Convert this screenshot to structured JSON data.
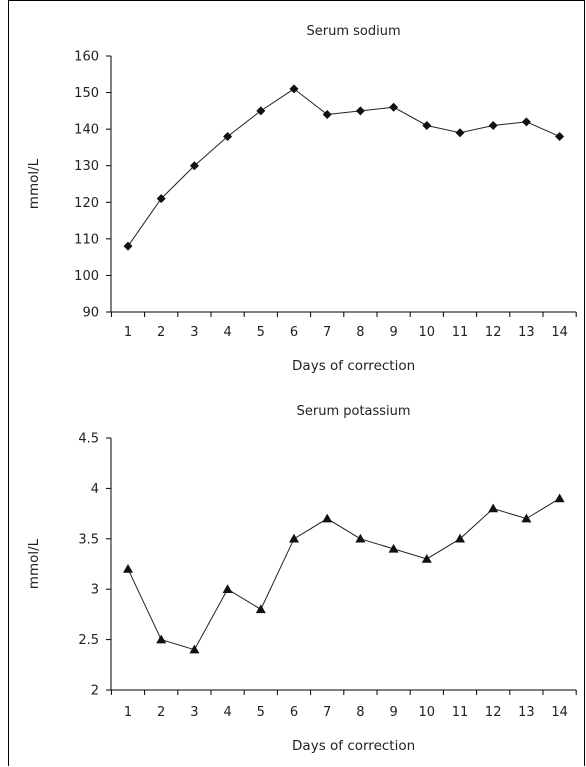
{
  "chart_data": [
    {
      "type": "line",
      "title": "Serum sodium",
      "xlabel": "Days of correction",
      "ylabel": "mmol/L",
      "x": [
        1,
        2,
        3,
        4,
        5,
        6,
        7,
        8,
        9,
        10,
        11,
        12,
        13,
        14
      ],
      "x_tick_labels": [
        "1",
        "2",
        "3",
        "4",
        "5",
        "6",
        "7",
        "8",
        "9",
        "10",
        "11",
        "12",
        "13",
        "14"
      ],
      "series": [
        {
          "values": [
            108,
            121,
            130,
            138,
            145,
            151,
            144,
            145,
            146,
            141,
            139,
            141,
            142,
            138
          ],
          "marker": "diamond"
        }
      ],
      "ylim": [
        90,
        160
      ],
      "y_ticks": [
        90,
        100,
        110,
        120,
        130,
        140,
        150,
        160
      ],
      "y_tick_labels": [
        "90",
        "100",
        "110",
        "120",
        "130",
        "140",
        "150",
        "160"
      ],
      "grid": false,
      "color": "#111111"
    },
    {
      "type": "line",
      "title": "Serum potassium",
      "xlabel": "Days of correction",
      "ylabel": "mmol/L",
      "x": [
        1,
        2,
        3,
        4,
        5,
        6,
        7,
        8,
        9,
        10,
        11,
        12,
        13,
        14
      ],
      "x_tick_labels": [
        "1",
        "2",
        "3",
        "4",
        "5",
        "6",
        "7",
        "8",
        "9",
        "10",
        "11",
        "12",
        "13",
        "14"
      ],
      "series": [
        {
          "values": [
            3.2,
            2.5,
            2.4,
            3.0,
            2.8,
            3.5,
            3.7,
            3.5,
            3.4,
            3.3,
            3.5,
            3.8,
            3.7,
            3.9
          ],
          "marker": "triangle"
        }
      ],
      "ylim": [
        2,
        4.5
      ],
      "y_ticks": [
        2,
        2.5,
        3,
        3.5,
        4,
        4.5
      ],
      "y_tick_labels": [
        "2",
        "2.5",
        "3",
        "3.5",
        "4",
        "4.5"
      ],
      "grid": false,
      "color": "#111111"
    }
  ]
}
